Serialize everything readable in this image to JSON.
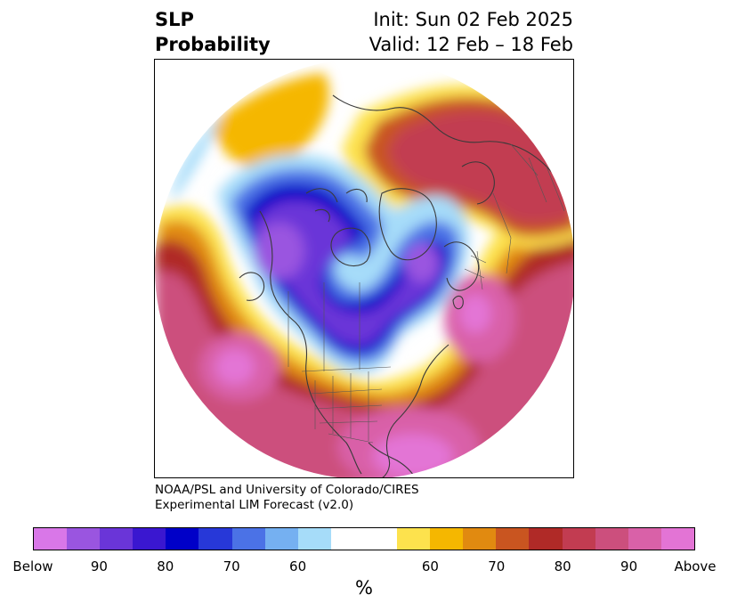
{
  "title": {
    "left_line1": "SLP",
    "left_line2": "Probability",
    "right_line1": "Init: Sun 02 Feb 2025",
    "right_line2": "Valid: 12 Feb – 18 Feb"
  },
  "credit": {
    "line1": "NOAA/PSL and University of Colorado/CIRES",
    "line2": "Experimental LIM Forecast (v2.0)"
  },
  "colorbar": {
    "label": "%",
    "below_colors": [
      "#d977e8",
      "#9a55e0",
      "#6a35d8",
      "#3a17d0",
      "#0000c8",
      "#2738d8",
      "#4b72e6",
      "#75b0f1",
      "#a6dcf9"
    ],
    "neutral_color": "#ffffff",
    "above_colors": [
      "#fde24d",
      "#f5b700",
      "#e18a10",
      "#c95520",
      "#b02a27",
      "#c23c51",
      "#cc4f7d",
      "#d961a8",
      "#e374d5"
    ],
    "ticks": [
      "Below",
      "90",
      "80",
      "70",
      "60",
      "60",
      "70",
      "80",
      "90",
      "Above"
    ]
  },
  "map": {
    "projection": "north-polar-stereographic",
    "variable": "SLP probability",
    "features": [
      "contour-fill",
      "coastlines",
      "country-borders",
      "state-borders"
    ]
  }
}
